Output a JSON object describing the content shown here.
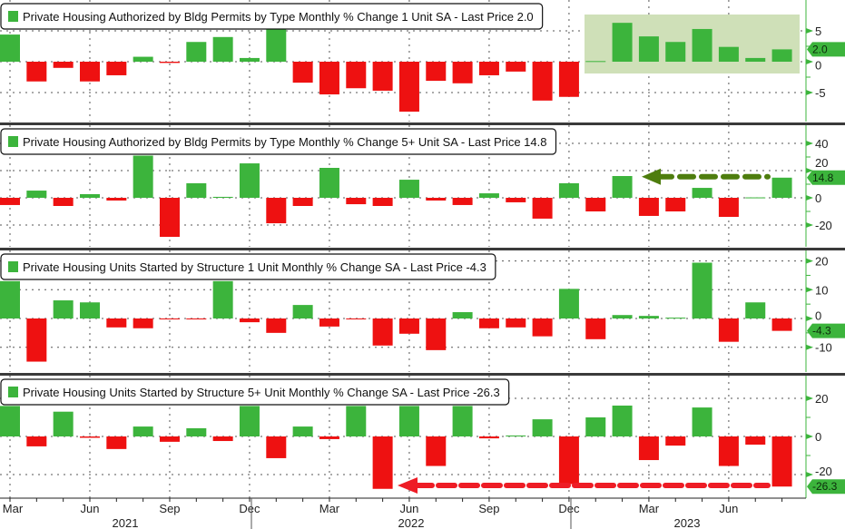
{
  "colors": {
    "positive": "#3cb43c",
    "negative": "#ee1111",
    "highlight": "#cfe0b8",
    "arrow_green": "#4e7d0e",
    "arrow_red": "#ee1c25",
    "tag": "#3cb43c"
  },
  "chart_data": [
    {
      "type": "bar",
      "title": "Private Housing Authorized by Bldg Permits by Type Monthly % Change 1 Unit SA - Last Price 2.0",
      "last_price": "2.0",
      "ylim": [
        -9,
        8
      ],
      "yticks": [
        "5",
        "0",
        "-5"
      ],
      "ytick_values": [
        5,
        0,
        -5
      ],
      "values": [
        4.4,
        -3.2,
        -1.0,
        -3.2,
        -2.2,
        0.8,
        -0.2,
        3.2,
        4.0,
        0.6,
        5.5,
        -3.4,
        -5.3,
        -4.3,
        -4.7,
        -8.1,
        -3.1,
        -3.5,
        -2.2,
        -1.6,
        -6.3,
        -5.7,
        0.1,
        6.3,
        4.1,
        3.2,
        5.3,
        2.4,
        0.6,
        2.0
      ],
      "annotation": "shaded box highlighting Dec 2022 - Aug 2023"
    },
    {
      "type": "bar",
      "title": "Private Housing Authorized by Bldg Permits by Type Monthly % Change 5+ Unit SA - Last Price 14.8",
      "last_price": "14.8",
      "ylim": [
        -35,
        50
      ],
      "yticks": [
        "40",
        "20",
        "0",
        "-20"
      ],
      "ytick_values": [
        40,
        20,
        0,
        -20
      ],
      "values": [
        -5.3,
        5.3,
        -6.0,
        2.7,
        -2.0,
        31,
        -28.7,
        10.7,
        0.7,
        25.3,
        -18.7,
        -6.0,
        22,
        -4.7,
        -6.0,
        13.3,
        -2.0,
        -5.3,
        3.3,
        -3.3,
        -15.3,
        10.7,
        -10,
        16,
        -13.3,
        -10,
        7.3,
        -14,
        0.3,
        14.8
      ],
      "annotation": "dashed arrow pointing back from latest value to Feb 2023"
    },
    {
      "type": "bar",
      "title": "Private Housing Units Started by Structure 1 Unit Monthly % Change SA - Last Price -4.3",
      "last_price": "-4.3",
      "ylim": [
        -18,
        22
      ],
      "yticks": [
        "20",
        "10",
        "0",
        "-10"
      ],
      "ytick_values": [
        20,
        10,
        0,
        -10
      ],
      "values": [
        13,
        -15,
        6.3,
        5.6,
        -3.1,
        -3.4,
        -0.3,
        -0.3,
        13,
        -1.3,
        -5,
        4.7,
        -2.8,
        -0.2,
        -9.4,
        -5.3,
        -11,
        2.2,
        -3.4,
        -3.1,
        -6.2,
        10.3,
        -7.2,
        1.2,
        0.9,
        0.3,
        19.4,
        -8.1,
        5.6,
        -4.3
      ]
    },
    {
      "type": "bar",
      "title": "Private Housing Units Started by Structure 5+ Unit Monthly % Change SA - Last Price -26.3",
      "last_price": "-26.3",
      "ylim": [
        -32,
        30
      ],
      "yticks": [
        "20",
        "0",
        "-20"
      ],
      "ytick_values": [
        20,
        0,
        -20
      ],
      "values": [
        16,
        -5.2,
        13,
        -0.7,
        -6.6,
        5.2,
        -2.8,
        4.3,
        -2.4,
        16,
        -11.4,
        5.2,
        -1.4,
        16,
        -27.5,
        16,
        -15.5,
        16,
        -1,
        0.5,
        9,
        -25,
        10,
        16.2,
        -12.4,
        -4.8,
        15.2,
        -15.5,
        -4.3,
        -26.3
      ],
      "annotation": "dashed arrow pointing back from latest value to May 2022"
    }
  ],
  "x_axis": {
    "months": [
      "Mar",
      "2021-04",
      "2021-05",
      "Jun",
      "2021-07",
      "2021-08",
      "Sep",
      "2021-10",
      "2021-11",
      "Dec",
      "2022-01",
      "2022-02",
      "Mar",
      "2022-04",
      "2022-05",
      "Jun",
      "2022-07",
      "2022-08",
      "Sep",
      "2022-10",
      "2022-11",
      "Dec",
      "2023-01",
      "2023-02",
      "Mar",
      "2023-04",
      "2023-05",
      "Jun",
      "2023-07",
      "2023-08"
    ],
    "tick_labels": [
      "Mar",
      "Jun",
      "Sep",
      "Dec",
      "Mar",
      "Jun",
      "Sep",
      "Dec",
      "Mar",
      "Jun"
    ],
    "years": [
      "2021",
      "2022",
      "2023"
    ]
  }
}
